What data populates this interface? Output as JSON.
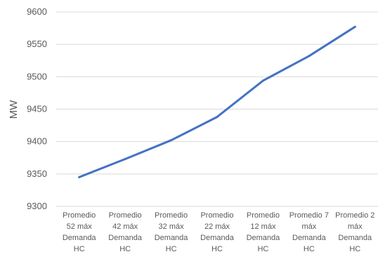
{
  "chart_data": {
    "type": "line",
    "title": "",
    "xlabel": "",
    "ylabel": "MW",
    "ylim": [
      9300,
      9600
    ],
    "yticks": [
      9300,
      9350,
      9400,
      9450,
      9500,
      9550,
      9600
    ],
    "grid": true,
    "legend": "none",
    "categories": [
      [
        "Promedio",
        "52 máx",
        "Demanda",
        "HC"
      ],
      [
        "Promedio",
        "42 máx",
        "Demanda",
        "HC"
      ],
      [
        "Promedio",
        "32 máx",
        "Demanda",
        "HC"
      ],
      [
        "Promedio",
        "22 máx",
        "Demanda",
        "HC"
      ],
      [
        "Promedio",
        "12 máx",
        "Demanda",
        "HC"
      ],
      [
        "Promedio 7",
        "máx",
        "Demanda",
        "HC"
      ],
      [
        "Promedio 2",
        "máx",
        "Demanda",
        "HC"
      ]
    ],
    "series": [
      {
        "values": [
          9345,
          9373,
          9402,
          9438,
          9494,
          9532,
          9577
        ],
        "color": "#4472c4"
      }
    ],
    "gridColor": "#d9d9d9"
  }
}
